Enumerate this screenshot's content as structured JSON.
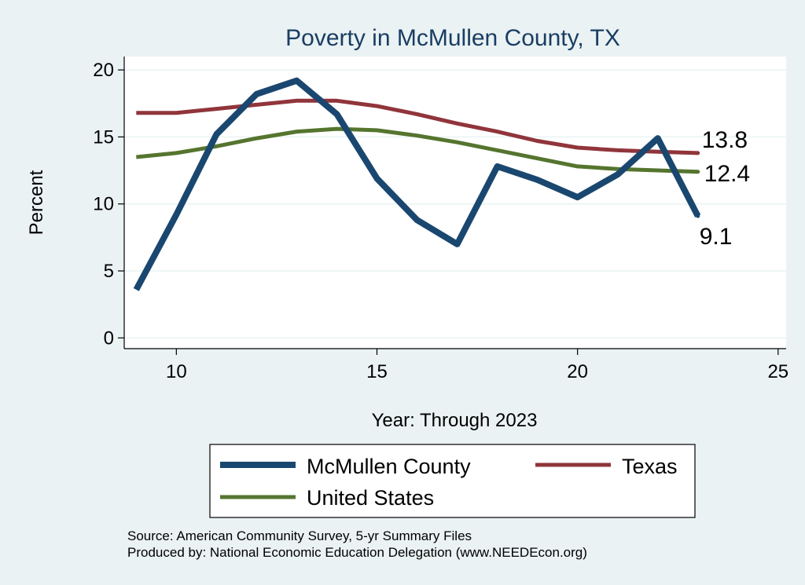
{
  "chart_data": {
    "type": "line",
    "title": "Poverty in McMullen County, TX",
    "xlabel": "Year: Through 2023",
    "ylabel": "Percent",
    "xlim": [
      8.7,
      25.2
    ],
    "ylim": [
      -0.8,
      21.0
    ],
    "xticks": [
      10,
      15,
      20,
      25
    ],
    "yticks": [
      0,
      5,
      10,
      15,
      20
    ],
    "grid": true,
    "x": [
      9,
      10,
      11,
      12,
      13,
      14,
      15,
      16,
      17,
      18,
      19,
      20,
      21,
      22,
      23
    ],
    "series": [
      {
        "name": "McMullen County",
        "color": "#1a476f",
        "width": 8,
        "values": [
          3.6,
          9.2,
          15.2,
          18.2,
          19.2,
          16.7,
          11.9,
          8.8,
          7.0,
          12.8,
          11.8,
          10.5,
          12.2,
          14.9,
          9.1
        ],
        "end_label": "9.1"
      },
      {
        "name": "Texas",
        "color": "#90353b",
        "width": 5,
        "values": [
          16.8,
          16.8,
          17.1,
          17.4,
          17.7,
          17.7,
          17.3,
          16.7,
          16.0,
          15.4,
          14.7,
          14.2,
          14.0,
          13.9,
          13.8
        ],
        "end_label": "13.8"
      },
      {
        "name": "United States",
        "color": "#55752f",
        "width": 5,
        "values": [
          13.5,
          13.8,
          14.3,
          14.9,
          15.4,
          15.6,
          15.5,
          15.1,
          14.6,
          14.0,
          13.4,
          12.8,
          12.6,
          12.5,
          12.4
        ],
        "end_label": "12.4"
      }
    ],
    "legend": [
      "McMullen County",
      "Texas",
      "United States"
    ],
    "legend_position": "bottom",
    "notes": [
      "Source: American Community Survey, 5-yr Summary Files",
      "Produced by: National Economic Education Delegation (www.NEEDEcon.org)"
    ]
  }
}
